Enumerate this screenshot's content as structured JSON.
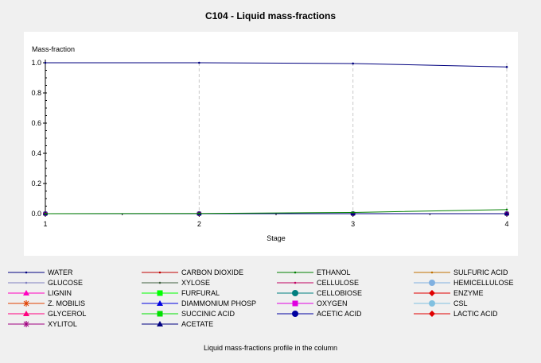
{
  "chart_data": {
    "type": "line",
    "title": "C104 - Liquid mass-fractions",
    "ylabel": "Mass-fraction",
    "xlabel": "Stage",
    "footer": "Liquid mass-fractions  profile in the column",
    "x": [
      1,
      2,
      3,
      4
    ],
    "ylim": [
      0,
      1.0
    ],
    "xlim": [
      1,
      4
    ],
    "yticks": [
      "0.0",
      "0.2",
      "0.4",
      "0.6",
      "0.8",
      "1.0"
    ],
    "xticks": [
      "1",
      "2",
      "3",
      "4"
    ],
    "grid": "vertical dashed at stages",
    "legend_position": "bottom",
    "series": [
      {
        "name": "WATER",
        "color": "#00007f",
        "marker": "dot",
        "values": [
          1.0,
          1.0,
          0.995,
          0.972
        ]
      },
      {
        "name": "CARBON DIOXIDE",
        "color": "#c00000",
        "marker": "dot",
        "values": [
          0,
          0,
          0,
          0
        ]
      },
      {
        "name": "ETHANOL",
        "color": "#007f00",
        "marker": "dot",
        "values": [
          0.0,
          0.001,
          0.008,
          0.027
        ]
      },
      {
        "name": "SULFURIC ACID",
        "color": "#c07000",
        "marker": "dot",
        "values": [
          0,
          0,
          0,
          0
        ]
      },
      {
        "name": "GLUCOSE",
        "color": "#8080c0",
        "marker": "dot",
        "values": [
          0,
          0,
          0,
          0
        ]
      },
      {
        "name": "XYLOSE",
        "color": "#3f5f3f",
        "marker": "dot",
        "values": [
          0,
          0,
          0,
          0
        ]
      },
      {
        "name": "CELLULOSE",
        "color": "#c00060",
        "marker": "dot",
        "values": [
          0,
          0,
          0,
          0
        ]
      },
      {
        "name": "HEMICELLULOSE",
        "color": "#80b0e0",
        "marker": "circle",
        "values": [
          0,
          0,
          0,
          0
        ]
      },
      {
        "name": "LIGNIN",
        "color": "#ff00c0",
        "marker": "triangle",
        "values": [
          0,
          0,
          0,
          0
        ]
      },
      {
        "name": "FURFURAL",
        "color": "#00ff00",
        "marker": "square",
        "values": [
          0,
          0,
          0,
          0
        ]
      },
      {
        "name": "CELLOBIOSE",
        "color": "#007f7f",
        "marker": "circle",
        "values": [
          0,
          0,
          0,
          0
        ]
      },
      {
        "name": "ENZYME",
        "color": "#e00000",
        "marker": "diamond",
        "values": [
          0,
          0,
          0,
          0
        ]
      },
      {
        "name": "Z. MOBILIS",
        "color": "#e04000",
        "marker": "star",
        "values": [
          0,
          0,
          0,
          0
        ]
      },
      {
        "name": "DIAMMONIUM PHOSP",
        "color": "#0000e0",
        "marker": "triangle",
        "values": [
          0,
          0,
          0,
          0
        ]
      },
      {
        "name": "OXYGEN",
        "color": "#e000e0",
        "marker": "square",
        "values": [
          0,
          0,
          0,
          0
        ]
      },
      {
        "name": "CSL",
        "color": "#80c0e0",
        "marker": "circle",
        "values": [
          0,
          0,
          0,
          0
        ]
      },
      {
        "name": "GLYCEROL",
        "color": "#ff0080",
        "marker": "triangle",
        "values": [
          0,
          0,
          0,
          0
        ]
      },
      {
        "name": "SUCCINIC ACID",
        "color": "#00e000",
        "marker": "square",
        "values": [
          0,
          0,
          0,
          0
        ]
      },
      {
        "name": "ACETIC ACID",
        "color": "#0000a0",
        "marker": "circle",
        "values": [
          0,
          0,
          0,
          0
        ]
      },
      {
        "name": "LACTIC ACID",
        "color": "#e00000",
        "marker": "diamond",
        "values": [
          0,
          0,
          0,
          0
        ]
      },
      {
        "name": "XYLITOL",
        "color": "#a00080",
        "marker": "star",
        "values": [
          0,
          0,
          0,
          0
        ]
      },
      {
        "name": "ACETATE",
        "color": "#000080",
        "marker": "triangle",
        "values": [
          0,
          0,
          0,
          0
        ]
      }
    ]
  }
}
